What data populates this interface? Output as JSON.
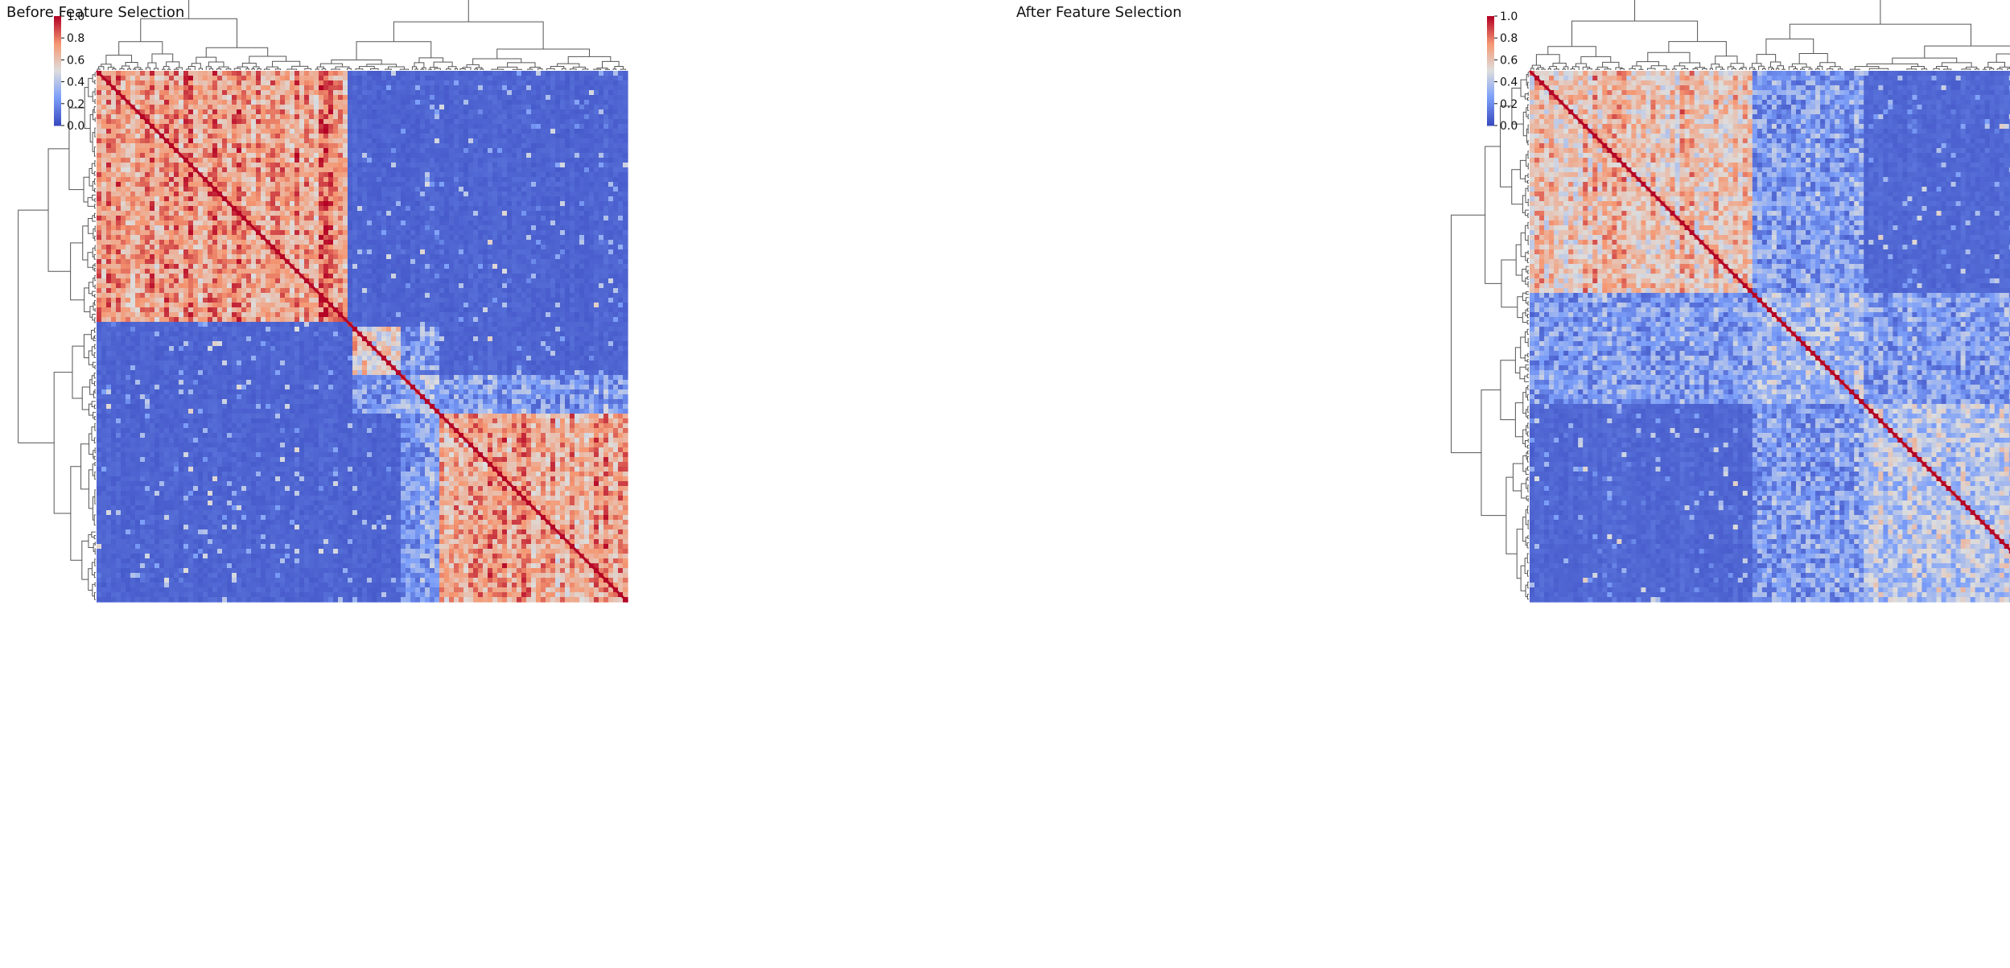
{
  "figure": {
    "colormap": "coolwarm",
    "colors": {
      "low": "#3b4cc0",
      "mid": "#dddddd",
      "high": "#b40426",
      "dendrogram_line": "#555555"
    }
  },
  "chart_data": [
    {
      "type": "heatmap",
      "title": "Before Feature Selection",
      "clustered": true,
      "row_dendrogram": true,
      "col_dendrogram": true,
      "colorbar": {
        "min": 0.0,
        "max": 1.0,
        "ticks": [
          "0.0",
          "0.2",
          "0.4",
          "0.6",
          "0.8",
          "1.0"
        ]
      },
      "diagonal_value": 1.0,
      "xlabel": "",
      "ylabel": "",
      "blocks": [
        {
          "start": 0.0,
          "end": 0.47,
          "value": 0.72
        },
        {
          "start": 0.48,
          "end": 0.57,
          "value": 0.55
        },
        {
          "start": 0.57,
          "end": 0.64,
          "value": 0.35
        },
        {
          "start": 0.64,
          "end": 1.0,
          "value": 0.7
        }
      ],
      "background_value": 0.05
    },
    {
      "type": "heatmap",
      "title": "After Feature Selection",
      "clustered": true,
      "row_dendrogram": true,
      "col_dendrogram": true,
      "colorbar": {
        "min": 0.0,
        "max": 1.0,
        "ticks": [
          "0.0",
          "0.2",
          "0.4",
          "0.6",
          "0.8",
          "1.0"
        ]
      },
      "diagonal_value": 1.0,
      "xlabel": "",
      "ylabel": "",
      "blocks": [
        {
          "start": 0.0,
          "end": 0.41,
          "value": 0.62
        },
        {
          "start": 0.41,
          "end": 0.62,
          "value": 0.35
        },
        {
          "start": 0.62,
          "end": 1.0,
          "value": 0.4
        }
      ],
      "background_value": 0.06
    }
  ]
}
